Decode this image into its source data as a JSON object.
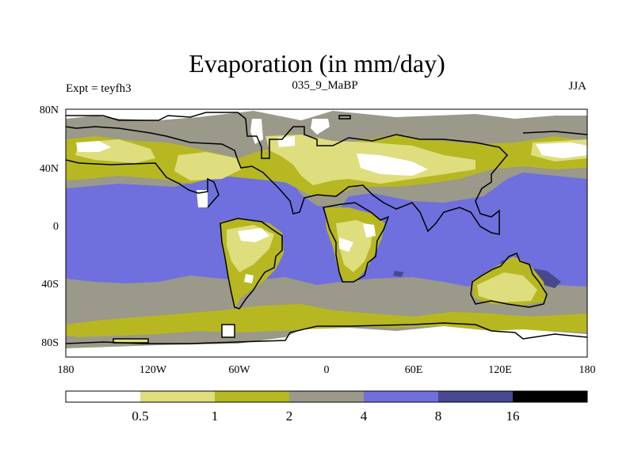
{
  "figure": {
    "title": "Evaporation (in mm/day)",
    "left_label": "Expt = teyfh3",
    "center_label": "035_9_MaBP",
    "right_label": "JJA"
  },
  "axes": {
    "lat_ticks": [
      "80N",
      "40N",
      "0",
      "40S",
      "80S"
    ],
    "lon_ticks": [
      "180",
      "120W",
      "60W",
      "0",
      "60E",
      "120E",
      "180"
    ]
  },
  "colorbar": {
    "levels": [
      "0.5",
      "1",
      "2",
      "4",
      "8",
      "16"
    ],
    "colors": [
      "#ffffff",
      "#dede7f",
      "#b7b722",
      "#9a998a",
      "#6f70dd",
      "#47488f",
      "#000000"
    ]
  },
  "map_colors": {
    "very_low": "#ffffff",
    "low": "#dede7f",
    "medium": "#b7b722",
    "moderate": "#9a998a",
    "high": "#6f70dd",
    "very_high": "#47488f",
    "coastline": "#000000"
  }
}
